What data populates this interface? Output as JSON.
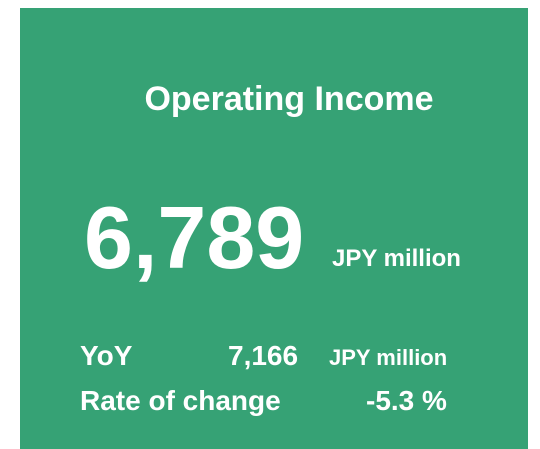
{
  "card": {
    "title": "Operating Income",
    "value": "6,789",
    "unit": "JPY million",
    "yoy": {
      "label": "YoY",
      "value": "7,166",
      "unit": "JPY million"
    },
    "rate": {
      "label": "Rate of change",
      "value": "-5.3 %"
    }
  }
}
